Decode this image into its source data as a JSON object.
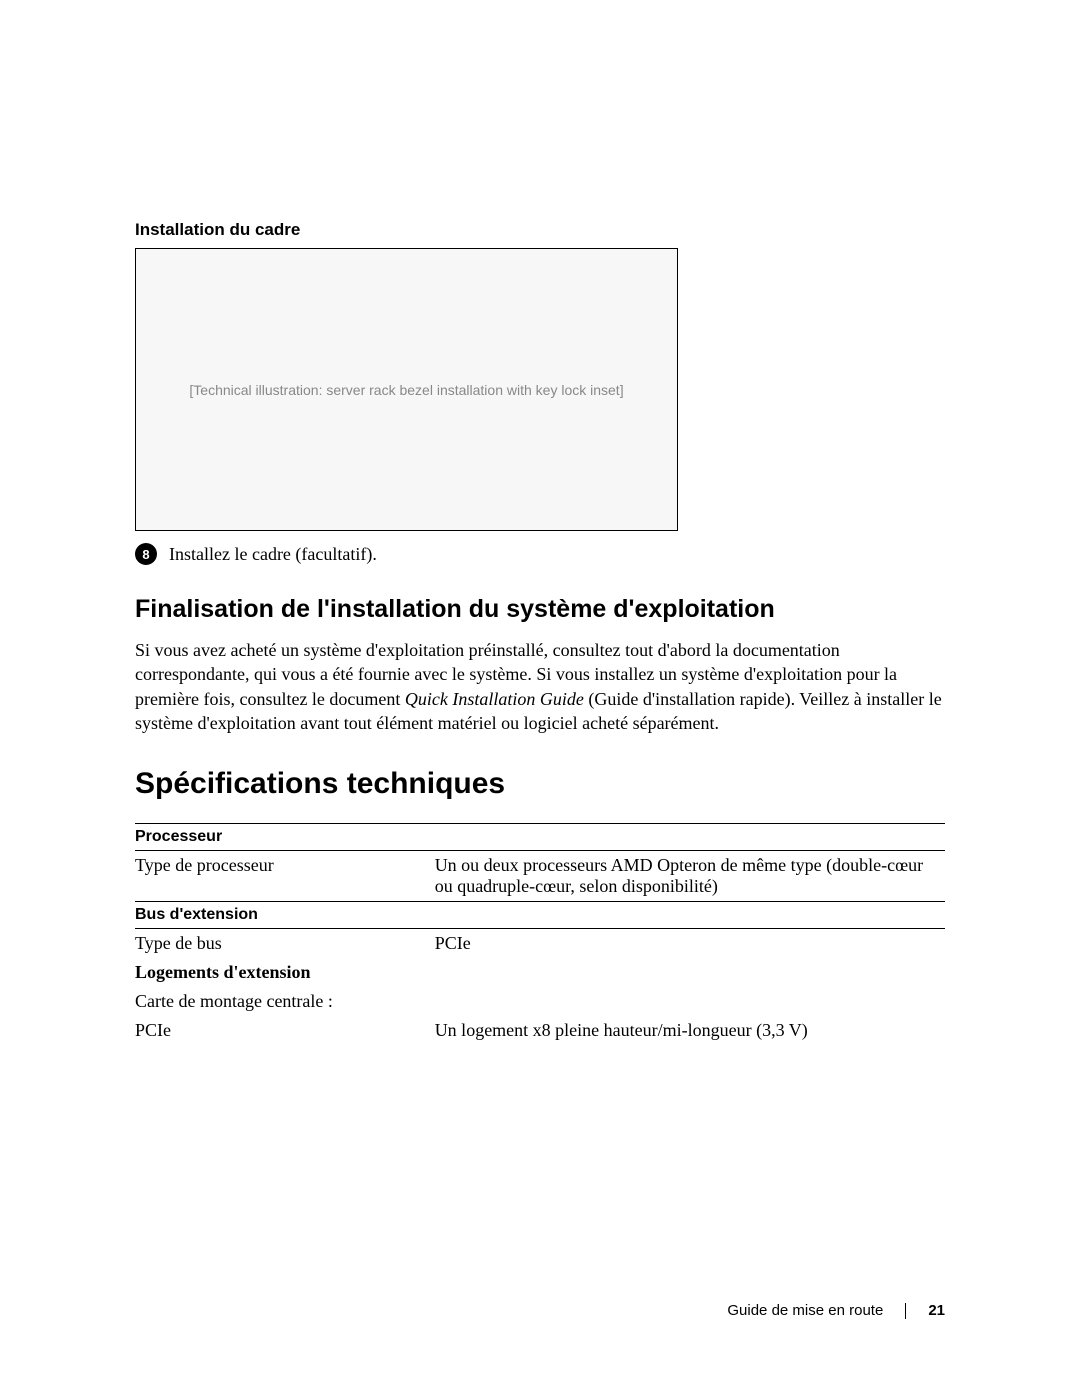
{
  "figure": {
    "caption": "Installation du cadre",
    "placeholder": "[Technical illustration: server rack bezel installation with key lock inset]"
  },
  "step": {
    "number": "8",
    "text": "Installez le cadre (facultatif)."
  },
  "section1": {
    "heading": "Finalisation de l'installation du système d'exploitation",
    "para_pre": "Si vous avez acheté un système d'exploitation préinstallé, consultez tout d'abord la documentation correspondante, qui vous a été fournie avec le système. Si vous installez un système d'exploitation pour la première fois, consultez le document ",
    "para_italic": "Quick Installation Guide",
    "para_post": " (Guide d'installation rapide). Veillez à installer le système d'exploitation avant tout élément matériel ou logiciel acheté séparément."
  },
  "section2": {
    "heading": "Spécifications techniques"
  },
  "spec": {
    "processor": {
      "header": "Processeur",
      "row1_label": "Type de processeur",
      "row1_value": "Un ou deux processeurs AMD Opteron de même type (double-cœur ou quadruple-cœur, selon disponibilité)"
    },
    "bus": {
      "header": "Bus d'extension",
      "row1_label": "Type de bus",
      "row1_value": "PCIe",
      "subhead": "Logements d'extension",
      "row2_label": "Carte de montage centrale :",
      "row3_label": "PCIe",
      "row3_value": "Un logement x8 pleine hauteur/mi-longueur (3,3 V)"
    }
  },
  "footer": {
    "title": "Guide de mise en route",
    "page": "21"
  }
}
